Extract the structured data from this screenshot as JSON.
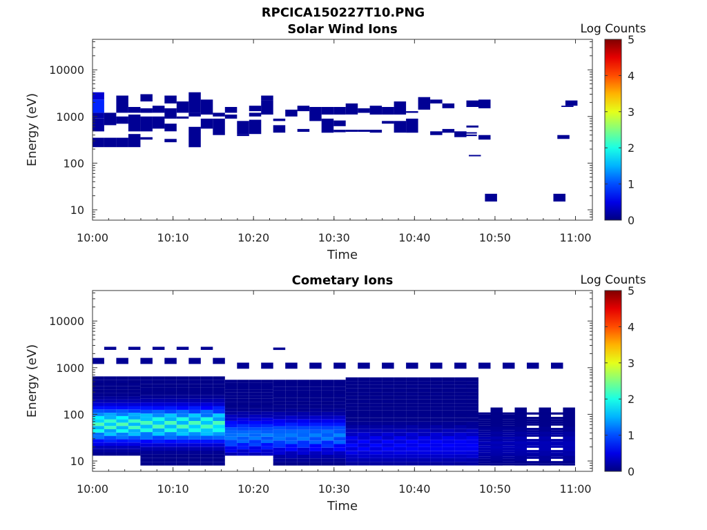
{
  "figure": {
    "title": "RPCICA150227T10.PNG"
  },
  "chart_data": [
    {
      "type": "heatmap",
      "title": "Solar Wind Ions",
      "xlabel": "Time",
      "ylabel": "Energy (eV)",
      "yscale": "log",
      "ylim": [
        6,
        45000
      ],
      "xlim": [
        "10:00",
        "11:01"
      ],
      "x_ticks": [
        "10:00",
        "10:10",
        "10:20",
        "10:30",
        "10:40",
        "10:50",
        "11:00"
      ],
      "y_ticks": [
        "10",
        "100",
        "1000",
        "10000"
      ],
      "colorbar": {
        "label": "Log Counts",
        "min": 0,
        "max": 5,
        "ticks": [
          "0",
          "1",
          "2",
          "3",
          "4",
          "5"
        ]
      },
      "grid": false,
      "cells": [
        [
          0.7,
          2300,
          3300,
          0.4
        ],
        [
          0.7,
          1200,
          2300,
          0.8
        ],
        [
          0.7,
          900,
          1200,
          0.2
        ],
        [
          0.7,
          480,
          900,
          0.15
        ],
        [
          0.7,
          220,
          350,
          0.1
        ],
        [
          2.2,
          650,
          1200,
          0.1
        ],
        [
          2.2,
          220,
          350,
          0.1
        ],
        [
          3.7,
          1200,
          2800,
          0.1
        ],
        [
          3.7,
          700,
          1000,
          0.1
        ],
        [
          3.7,
          220,
          350,
          0.1
        ],
        [
          5.2,
          1200,
          1600,
          0.1
        ],
        [
          5.2,
          480,
          1100,
          0.1
        ],
        [
          5.2,
          220,
          420,
          0.1
        ],
        [
          6.7,
          2100,
          3000,
          0.1
        ],
        [
          6.7,
          1200,
          1500,
          0.1
        ],
        [
          6.7,
          480,
          1000,
          0.1
        ],
        [
          6.7,
          320,
          360,
          0.1
        ],
        [
          8.2,
          1200,
          1700,
          0.1
        ],
        [
          8.2,
          550,
          1000,
          0.1
        ],
        [
          9.7,
          1900,
          2800,
          0.1
        ],
        [
          9.7,
          900,
          1500,
          0.1
        ],
        [
          9.7,
          480,
          700,
          0.1
        ],
        [
          9.7,
          280,
          330,
          0.1
        ],
        [
          11.2,
          1200,
          2100,
          0.1
        ],
        [
          11.2,
          900,
          1000,
          0.1
        ],
        [
          12.7,
          1200,
          3300,
          0.1
        ],
        [
          12.7,
          1000,
          1200,
          0.1
        ],
        [
          12.7,
          220,
          600,
          0.1
        ],
        [
          14.2,
          1100,
          2300,
          0.1
        ],
        [
          14.2,
          550,
          900,
          0.1
        ],
        [
          15.7,
          1000,
          1200,
          0.1
        ],
        [
          15.7,
          400,
          900,
          0.1
        ],
        [
          17.2,
          1200,
          1600,
          0.1
        ],
        [
          17.2,
          900,
          1100,
          0.1
        ],
        [
          18.7,
          420,
          800,
          0.1
        ],
        [
          18.7,
          380,
          420,
          0.1
        ],
        [
          20.2,
          1300,
          1700,
          0.1
        ],
        [
          20.2,
          1000,
          1200,
          0.1
        ],
        [
          20.2,
          420,
          850,
          0.1
        ],
        [
          21.7,
          2200,
          2800,
          0.1
        ],
        [
          21.7,
          1100,
          2200,
          0.1
        ],
        [
          23.2,
          800,
          900,
          0.1
        ],
        [
          23.2,
          450,
          650,
          0.1
        ],
        [
          24.7,
          1000,
          1400,
          0.1
        ],
        [
          26.2,
          1300,
          1700,
          0.1
        ],
        [
          26.2,
          470,
          540,
          0.1
        ],
        [
          27.7,
          800,
          1600,
          0.1
        ],
        [
          29.2,
          1100,
          1600,
          0.1
        ],
        [
          29.2,
          450,
          900,
          0.1
        ],
        [
          30.7,
          1100,
          1600,
          0.1
        ],
        [
          30.7,
          620,
          820,
          0.1
        ],
        [
          30.7,
          460,
          520,
          0.1
        ],
        [
          32.2,
          1100,
          1900,
          0.1
        ],
        [
          32.2,
          470,
          520,
          0.1
        ],
        [
          33.7,
          1200,
          1500,
          0.1
        ],
        [
          33.7,
          470,
          520,
          0.1
        ],
        [
          35.2,
          1100,
          1700,
          0.1
        ],
        [
          35.2,
          450,
          520,
          0.1
        ],
        [
          36.7,
          1100,
          1600,
          0.1
        ],
        [
          36.7,
          700,
          800,
          0.1
        ],
        [
          38.2,
          1100,
          2100,
          0.1
        ],
        [
          38.2,
          450,
          800,
          0.1
        ],
        [
          39.7,
          1200,
          1300,
          0.1
        ],
        [
          39.7,
          450,
          900,
          0.1
        ],
        [
          41.2,
          1600,
          2600,
          0.1
        ],
        [
          41.2,
          1400,
          1600,
          0.1
        ],
        [
          42.7,
          400,
          480,
          0.1
        ],
        [
          42.7,
          1900,
          2300,
          0.1
        ],
        [
          44.2,
          1500,
          1900,
          0.1
        ],
        [
          44.2,
          450,
          540,
          0.1
        ],
        [
          45.7,
          360,
          480,
          0.1
        ],
        [
          47.2,
          1600,
          2200,
          0.1
        ],
        [
          47.2,
          580,
          640,
          0.1
        ],
        [
          48.7,
          1500,
          2300,
          0.1
        ],
        [
          48.7,
          320,
          400,
          0.1
        ],
        [
          49.5,
          15,
          22,
          0.1
        ],
        [
          47.0,
          430,
          460,
          0.1
        ],
        [
          47.0,
          380,
          410,
          0.1
        ],
        [
          47.5,
          140,
          150,
          0.1
        ],
        [
          58.0,
          15,
          22,
          0.1
        ],
        [
          58.5,
          330,
          400,
          0.1
        ],
        [
          59.0,
          1600,
          1700,
          0.1
        ],
        [
          59.5,
          1700,
          2200,
          0.1
        ]
      ]
    },
    {
      "type": "heatmap",
      "title": "Cometary Ions",
      "xlabel": "Time",
      "ylabel": "Energy (eV)",
      "yscale": "log",
      "ylim": [
        6,
        45000
      ],
      "xlim": [
        "10:00",
        "11:01"
      ],
      "x_ticks": [
        "10:00",
        "10:10",
        "10:20",
        "10:30",
        "10:40",
        "10:50",
        "11:00"
      ],
      "y_ticks": [
        "10",
        "100",
        "1000",
        "10000"
      ],
      "colorbar": {
        "label": "Log Counts",
        "min": 0,
        "max": 5,
        "ticks": [
          "0",
          "1",
          "2",
          "3",
          "4",
          "5"
        ]
      },
      "grid": false
    }
  ]
}
